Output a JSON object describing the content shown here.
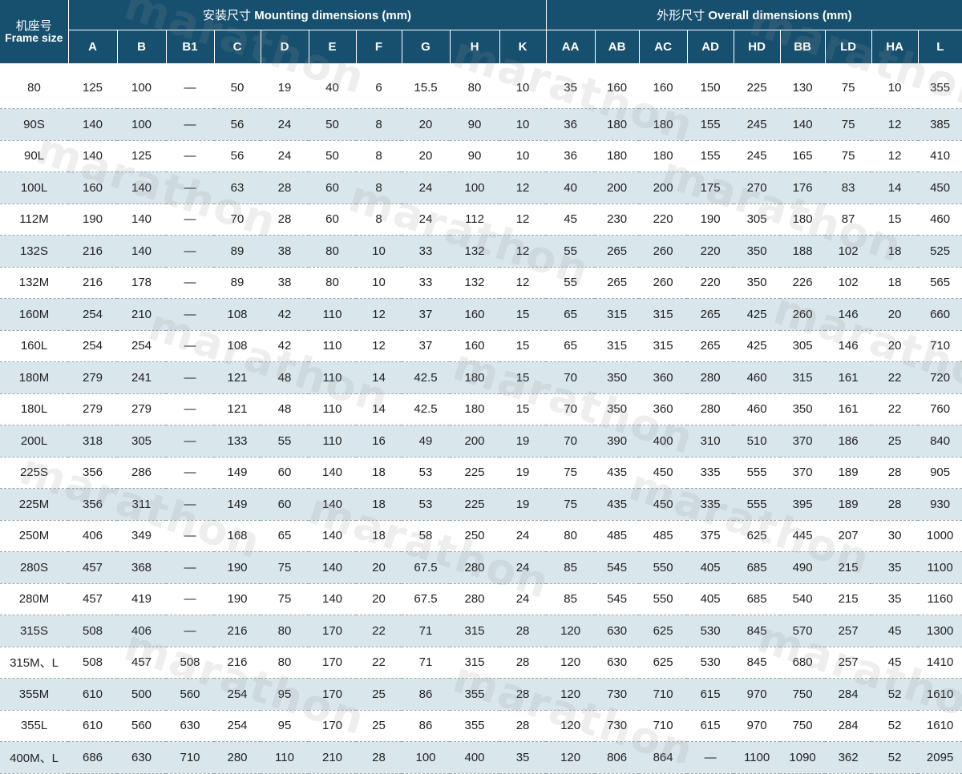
{
  "header": {
    "frame_size_zh": "机座号",
    "frame_size_en": "Frame size",
    "mounting_zh": "安装尺寸",
    "mounting_en": "Mounting dimensions (mm)",
    "overall_zh": "外形尺寸",
    "overall_en": "Overall dimensions (mm)"
  },
  "columns": {
    "mounting": [
      "A",
      "B",
      "B1",
      "C",
      "D",
      "E",
      "F",
      "G",
      "H",
      "K"
    ],
    "overall": [
      "AA",
      "AB",
      "AC",
      "AD",
      "HD",
      "BB",
      "LD",
      "HA",
      "L"
    ]
  },
  "rows": [
    [
      "80",
      "125",
      "100",
      "—",
      "50",
      "19",
      "40",
      "6",
      "15.5",
      "80",
      "10",
      "35",
      "160",
      "160",
      "150",
      "225",
      "130",
      "75",
      "10",
      "355"
    ],
    [
      "90S",
      "140",
      "100",
      "—",
      "56",
      "24",
      "50",
      "8",
      "20",
      "90",
      "10",
      "36",
      "180",
      "180",
      "155",
      "245",
      "140",
      "75",
      "12",
      "385"
    ],
    [
      "90L",
      "140",
      "125",
      "—",
      "56",
      "24",
      "50",
      "8",
      "20",
      "90",
      "10",
      "36",
      "180",
      "180",
      "155",
      "245",
      "165",
      "75",
      "12",
      "410"
    ],
    [
      "100L",
      "160",
      "140",
      "—",
      "63",
      "28",
      "60",
      "8",
      "24",
      "100",
      "12",
      "40",
      "200",
      "200",
      "175",
      "270",
      "176",
      "83",
      "14",
      "450"
    ],
    [
      "112M",
      "190",
      "140",
      "—",
      "70",
      "28",
      "60",
      "8",
      "24",
      "112",
      "12",
      "45",
      "230",
      "220",
      "190",
      "305",
      "180",
      "87",
      "15",
      "460"
    ],
    [
      "132S",
      "216",
      "140",
      "—",
      "89",
      "38",
      "80",
      "10",
      "33",
      "132",
      "12",
      "55",
      "265",
      "260",
      "220",
      "350",
      "188",
      "102",
      "18",
      "525"
    ],
    [
      "132M",
      "216",
      "178",
      "—",
      "89",
      "38",
      "80",
      "10",
      "33",
      "132",
      "12",
      "55",
      "265",
      "260",
      "220",
      "350",
      "226",
      "102",
      "18",
      "565"
    ],
    [
      "160M",
      "254",
      "210",
      "—",
      "108",
      "42",
      "110",
      "12",
      "37",
      "160",
      "15",
      "65",
      "315",
      "315",
      "265",
      "425",
      "260",
      "146",
      "20",
      "660"
    ],
    [
      "160L",
      "254",
      "254",
      "—",
      "108",
      "42",
      "110",
      "12",
      "37",
      "160",
      "15",
      "65",
      "315",
      "315",
      "265",
      "425",
      "305",
      "146",
      "20",
      "710"
    ],
    [
      "180M",
      "279",
      "241",
      "—",
      "121",
      "48",
      "110",
      "14",
      "42.5",
      "180",
      "15",
      "70",
      "350",
      "360",
      "280",
      "460",
      "315",
      "161",
      "22",
      "720"
    ],
    [
      "180L",
      "279",
      "279",
      "—",
      "121",
      "48",
      "110",
      "14",
      "42.5",
      "180",
      "15",
      "70",
      "350",
      "360",
      "280",
      "460",
      "350",
      "161",
      "22",
      "760"
    ],
    [
      "200L",
      "318",
      "305",
      "—",
      "133",
      "55",
      "110",
      "16",
      "49",
      "200",
      "19",
      "70",
      "390",
      "400",
      "310",
      "510",
      "370",
      "186",
      "25",
      "840"
    ],
    [
      "225S",
      "356",
      "286",
      "—",
      "149",
      "60",
      "140",
      "18",
      "53",
      "225",
      "19",
      "75",
      "435",
      "450",
      "335",
      "555",
      "370",
      "189",
      "28",
      "905"
    ],
    [
      "225M",
      "356",
      "311",
      "—",
      "149",
      "60",
      "140",
      "18",
      "53",
      "225",
      "19",
      "75",
      "435",
      "450",
      "335",
      "555",
      "395",
      "189",
      "28",
      "930"
    ],
    [
      "250M",
      "406",
      "349",
      "—",
      "168",
      "65",
      "140",
      "18",
      "58",
      "250",
      "24",
      "80",
      "485",
      "485",
      "375",
      "625",
      "445",
      "207",
      "30",
      "1000"
    ],
    [
      "280S",
      "457",
      "368",
      "—",
      "190",
      "75",
      "140",
      "20",
      "67.5",
      "280",
      "24",
      "85",
      "545",
      "550",
      "405",
      "685",
      "490",
      "215",
      "35",
      "1100"
    ],
    [
      "280M",
      "457",
      "419",
      "—",
      "190",
      "75",
      "140",
      "20",
      "67.5",
      "280",
      "24",
      "85",
      "545",
      "550",
      "405",
      "685",
      "540",
      "215",
      "35",
      "1160"
    ],
    [
      "315S",
      "508",
      "406",
      "—",
      "216",
      "80",
      "170",
      "22",
      "71",
      "315",
      "28",
      "120",
      "630",
      "625",
      "530",
      "845",
      "570",
      "257",
      "45",
      "1300"
    ],
    [
      "315M、L",
      "508",
      "457",
      "508",
      "216",
      "80",
      "170",
      "22",
      "71",
      "315",
      "28",
      "120",
      "630",
      "625",
      "530",
      "845",
      "680",
      "257",
      "45",
      "1410"
    ],
    [
      "355M",
      "610",
      "500",
      "560",
      "254",
      "95",
      "170",
      "25",
      "86",
      "355",
      "28",
      "120",
      "730",
      "710",
      "615",
      "970",
      "750",
      "284",
      "52",
      "1610"
    ],
    [
      "355L",
      "610",
      "560",
      "630",
      "254",
      "95",
      "170",
      "25",
      "86",
      "355",
      "28",
      "120",
      "730",
      "710",
      "615",
      "970",
      "750",
      "284",
      "52",
      "1610"
    ],
    [
      "400M、L",
      "686",
      "630",
      "710",
      "280",
      "110",
      "210",
      "28",
      "100",
      "400",
      "35",
      "120",
      "806",
      "864",
      "—",
      "1100",
      "1090",
      "362",
      "52",
      "2095"
    ]
  ],
  "watermark": "marathon",
  "colors": {
    "header_bg": "#17506e",
    "alt_row_bg": "#d9e6ec"
  }
}
